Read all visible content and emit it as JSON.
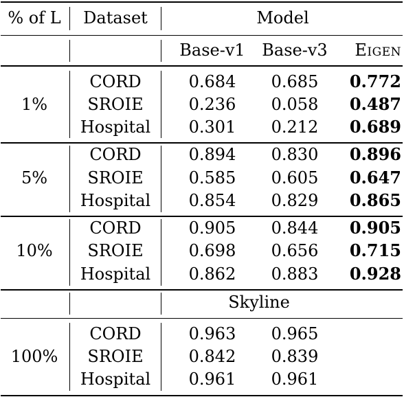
{
  "header": {
    "pct_label": "% of L",
    "dataset_label": "Dataset",
    "model_label": "Model",
    "models": [
      "Base-v1",
      "Base-v3",
      "Eigen"
    ],
    "skyline_label": "Skyline"
  },
  "groups": [
    {
      "pct": "1%",
      "rows": [
        {
          "dataset": "CORD",
          "base_v1": "0.684",
          "base_v3": "0.685",
          "eigen": "0.772"
        },
        {
          "dataset": "SROIE",
          "base_v1": "0.236",
          "base_v3": "0.058",
          "eigen": "0.487"
        },
        {
          "dataset": "Hospital",
          "base_v1": "0.301",
          "base_v3": "0.212",
          "eigen": "0.689"
        }
      ]
    },
    {
      "pct": "5%",
      "rows": [
        {
          "dataset": "CORD",
          "base_v1": "0.894",
          "base_v3": "0.830",
          "eigen": "0.896"
        },
        {
          "dataset": "SROIE",
          "base_v1": "0.585",
          "base_v3": "0.605",
          "eigen": "0.647"
        },
        {
          "dataset": "Hospital",
          "base_v1": "0.854",
          "base_v3": "0.829",
          "eigen": "0.865"
        }
      ]
    },
    {
      "pct": "10%",
      "rows": [
        {
          "dataset": "CORD",
          "base_v1": "0.905",
          "base_v3": "0.844",
          "eigen": "0.905"
        },
        {
          "dataset": "SROIE",
          "base_v1": "0.698",
          "base_v3": "0.656",
          "eigen": "0.715"
        },
        {
          "dataset": "Hospital",
          "base_v1": "0.862",
          "base_v3": "0.883",
          "eigen": "0.928"
        }
      ]
    }
  ],
  "skyline": {
    "pct": "100%",
    "rows": [
      {
        "dataset": "CORD",
        "base_v1": "0.963",
        "base_v3": "0.965"
      },
      {
        "dataset": "SROIE",
        "base_v1": "0.842",
        "base_v3": "0.839"
      },
      {
        "dataset": "Hospital",
        "base_v1": "0.961",
        "base_v3": "0.961"
      }
    ]
  }
}
